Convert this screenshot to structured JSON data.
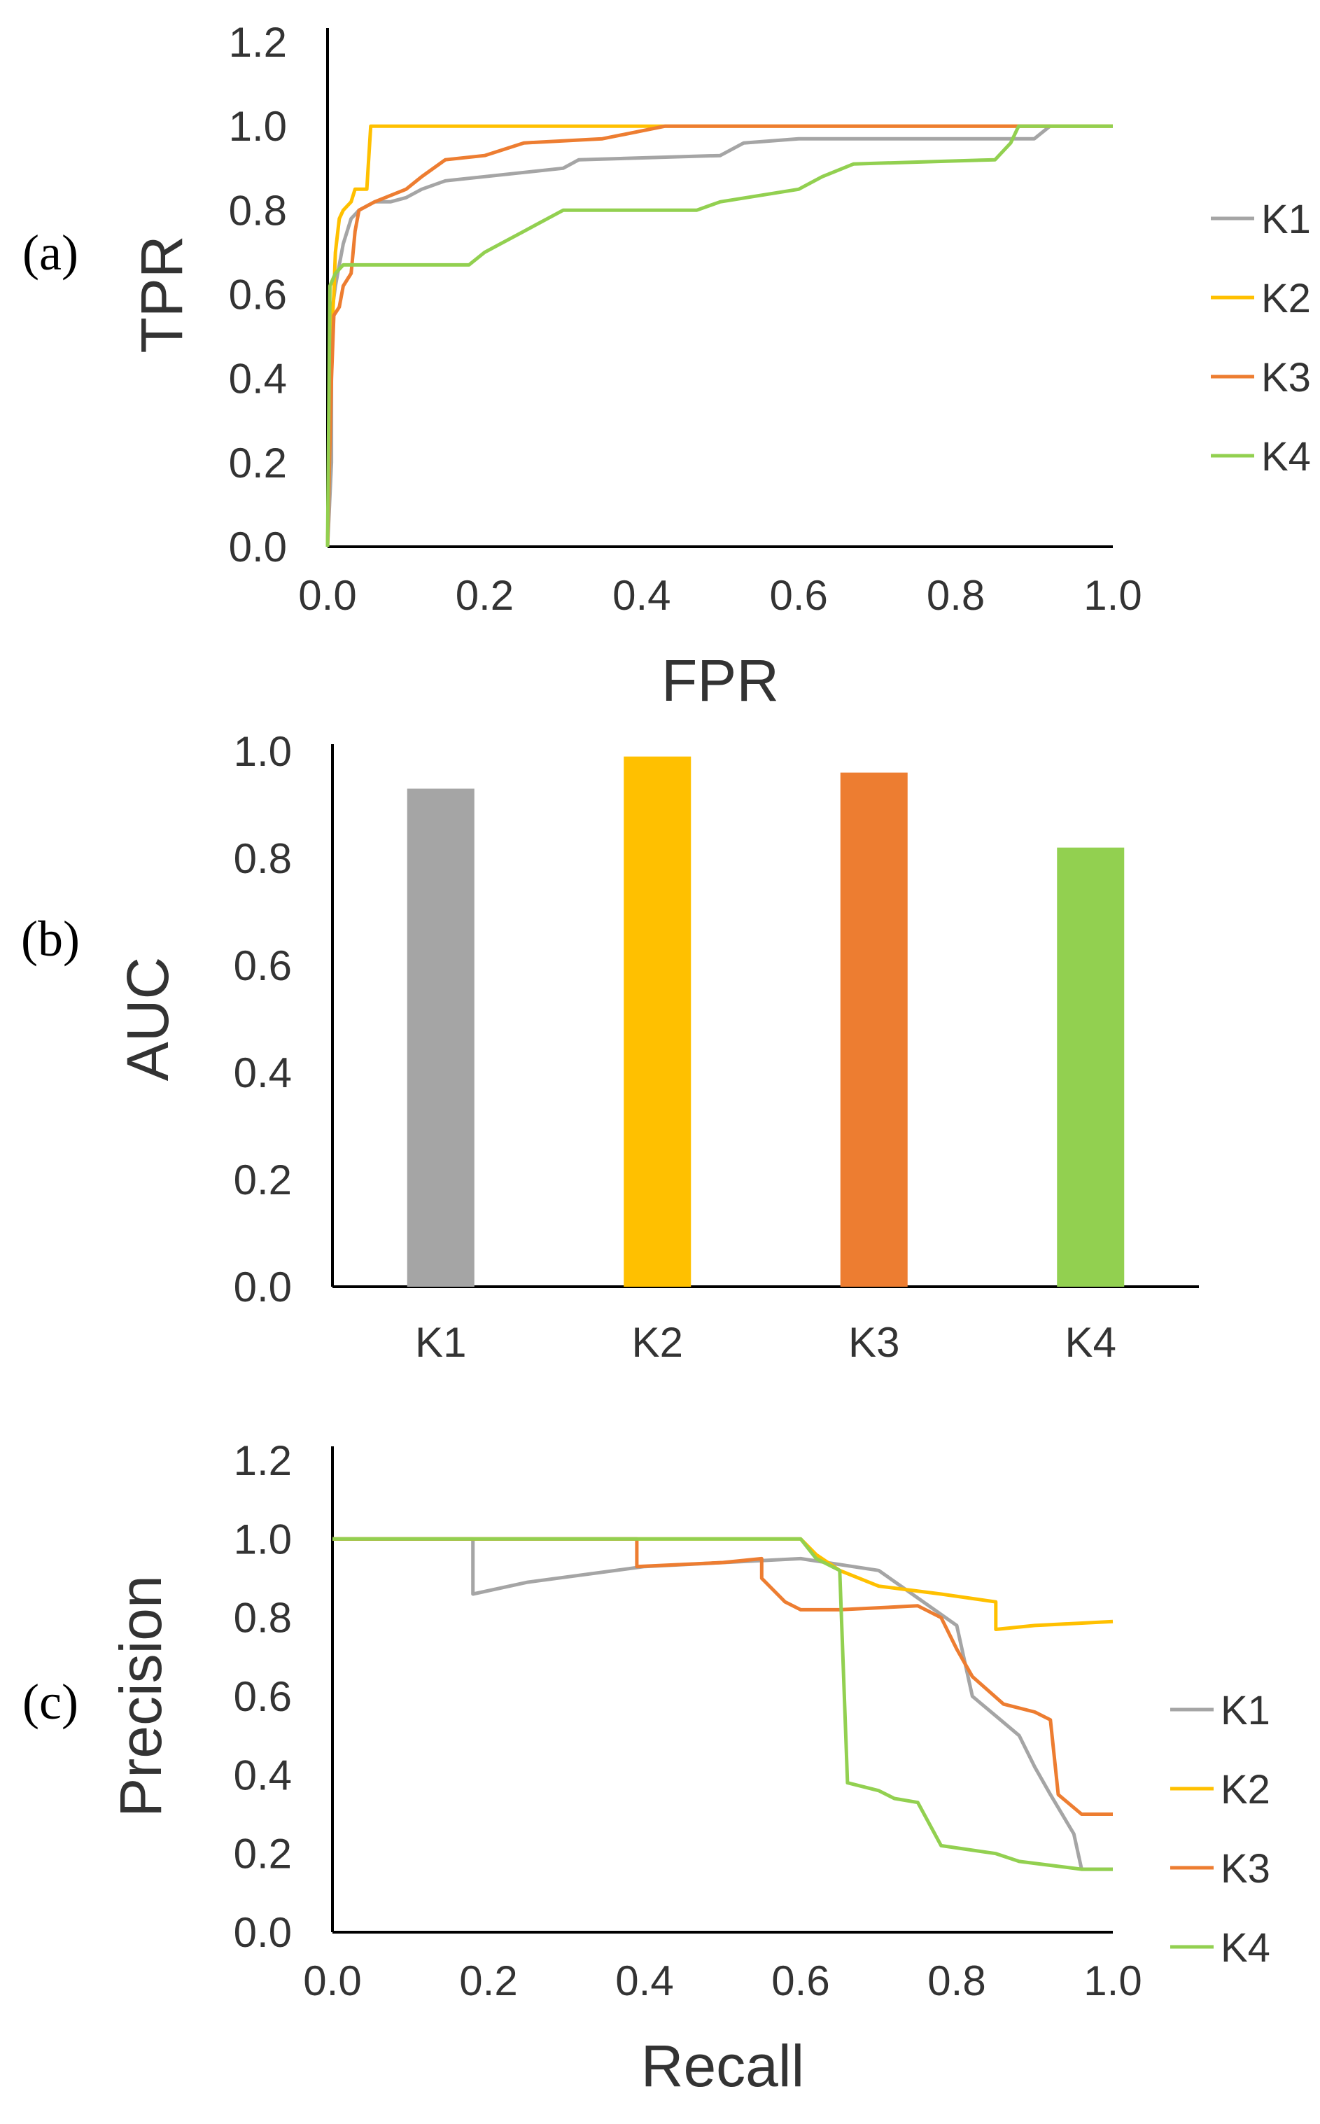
{
  "colors": {
    "K1": "#a5a5a5",
    "K2": "#ffc000",
    "K3": "#ed7d31",
    "K4": "#92d050",
    "axis": "#000000",
    "text": "#333333"
  },
  "chart_data": [
    {
      "id": "roc",
      "panel_label": "(a)",
      "type": "line",
      "xlabel": "FPR",
      "ylabel": "TPR",
      "xlim": [
        0,
        1.0
      ],
      "ylim": [
        0,
        1.2
      ],
      "xticks": [
        "0.0",
        "0.2",
        "0.4",
        "0.6",
        "0.8",
        "1.0"
      ],
      "yticks": [
        "0.0",
        "0.2",
        "0.4",
        "0.6",
        "0.8",
        "1.0",
        "1.2"
      ],
      "legend_position": "right",
      "series": [
        {
          "name": "K1",
          "points": [
            [
              0,
              0
            ],
            [
              0.005,
              0.2
            ],
            [
              0.005,
              0.55
            ],
            [
              0.01,
              0.62
            ],
            [
              0.02,
              0.72
            ],
            [
              0.03,
              0.78
            ],
            [
              0.04,
              0.8
            ],
            [
              0.06,
              0.82
            ],
            [
              0.08,
              0.82
            ],
            [
              0.1,
              0.83
            ],
            [
              0.12,
              0.85
            ],
            [
              0.15,
              0.87
            ],
            [
              0.2,
              0.88
            ],
            [
              0.25,
              0.89
            ],
            [
              0.3,
              0.9
            ],
            [
              0.32,
              0.92
            ],
            [
              0.5,
              0.93
            ],
            [
              0.53,
              0.96
            ],
            [
              0.6,
              0.97
            ],
            [
              0.9,
              0.97
            ],
            [
              0.92,
              1.0
            ],
            [
              1.0,
              1.0
            ]
          ]
        },
        {
          "name": "K2",
          "points": [
            [
              0,
              0
            ],
            [
              0.005,
              0.5
            ],
            [
              0.008,
              0.6
            ],
            [
              0.01,
              0.7
            ],
            [
              0.015,
              0.78
            ],
            [
              0.02,
              0.8
            ],
            [
              0.03,
              0.82
            ],
            [
              0.035,
              0.85
            ],
            [
              0.05,
              0.85
            ],
            [
              0.055,
              1.0
            ],
            [
              1.0,
              1.0
            ]
          ]
        },
        {
          "name": "K3",
          "points": [
            [
              0,
              0
            ],
            [
              0.005,
              0.4
            ],
            [
              0.008,
              0.55
            ],
            [
              0.015,
              0.57
            ],
            [
              0.02,
              0.62
            ],
            [
              0.03,
              0.65
            ],
            [
              0.035,
              0.75
            ],
            [
              0.04,
              0.8
            ],
            [
              0.06,
              0.82
            ],
            [
              0.1,
              0.85
            ],
            [
              0.12,
              0.88
            ],
            [
              0.15,
              0.92
            ],
            [
              0.2,
              0.93
            ],
            [
              0.25,
              0.96
            ],
            [
              0.35,
              0.97
            ],
            [
              0.43,
              1.0
            ],
            [
              0.92,
              1.0
            ]
          ]
        },
        {
          "name": "K4",
          "points": [
            [
              0,
              0
            ],
            [
              0.003,
              0.62
            ],
            [
              0.01,
              0.65
            ],
            [
              0.02,
              0.67
            ],
            [
              0.18,
              0.67
            ],
            [
              0.2,
              0.7
            ],
            [
              0.22,
              0.72
            ],
            [
              0.25,
              0.75
            ],
            [
              0.28,
              0.78
            ],
            [
              0.3,
              0.8
            ],
            [
              0.47,
              0.8
            ],
            [
              0.5,
              0.82
            ],
            [
              0.6,
              0.85
            ],
            [
              0.63,
              0.88
            ],
            [
              0.67,
              0.91
            ],
            [
              0.85,
              0.92
            ],
            [
              0.87,
              0.96
            ],
            [
              0.88,
              1.0
            ],
            [
              1.0,
              1.0
            ]
          ]
        }
      ]
    },
    {
      "id": "auc",
      "panel_label": "(b)",
      "type": "bar",
      "xlabel": "",
      "ylabel": "AUC",
      "categories": [
        "K1",
        "K2",
        "K3",
        "K4"
      ],
      "values": [
        0.93,
        0.99,
        0.96,
        0.82
      ],
      "ylim": [
        0,
        1.0
      ],
      "yticks": [
        "0.0",
        "0.2",
        "0.4",
        "0.6",
        "0.8",
        "1.0"
      ]
    },
    {
      "id": "pr",
      "panel_label": "(c)",
      "type": "line",
      "xlabel": "Recall",
      "ylabel": "Precision",
      "xlim": [
        0,
        1.0
      ],
      "ylim": [
        0,
        1.2
      ],
      "xticks": [
        "0.0",
        "0.2",
        "0.4",
        "0.6",
        "0.8",
        "1.0"
      ],
      "yticks": [
        "0.0",
        "0.2",
        "0.4",
        "0.6",
        "0.8",
        "1.0",
        "1.2"
      ],
      "legend_position": "right",
      "series": [
        {
          "name": "K1",
          "points": [
            [
              0,
              1.0
            ],
            [
              0.18,
              1.0
            ],
            [
              0.18,
              0.86
            ],
            [
              0.25,
              0.89
            ],
            [
              0.4,
              0.93
            ],
            [
              0.6,
              0.95
            ],
            [
              0.7,
              0.92
            ],
            [
              0.8,
              0.78
            ],
            [
              0.82,
              0.6
            ],
            [
              0.85,
              0.55
            ],
            [
              0.88,
              0.5
            ],
            [
              0.9,
              0.42
            ],
            [
              0.92,
              0.35
            ],
            [
              0.95,
              0.25
            ],
            [
              0.96,
              0.16
            ],
            [
              1.0,
              0.16
            ]
          ]
        },
        {
          "name": "K2",
          "points": [
            [
              0,
              1.0
            ],
            [
              0.6,
              1.0
            ],
            [
              0.62,
              0.96
            ],
            [
              0.65,
              0.92
            ],
            [
              0.7,
              0.88
            ],
            [
              0.78,
              0.86
            ],
            [
              0.85,
              0.84
            ],
            [
              0.85,
              0.77
            ],
            [
              0.9,
              0.78
            ],
            [
              1.0,
              0.79
            ]
          ]
        },
        {
          "name": "K3",
          "points": [
            [
              0,
              1.0
            ],
            [
              0.39,
              1.0
            ],
            [
              0.39,
              0.93
            ],
            [
              0.5,
              0.94
            ],
            [
              0.55,
              0.95
            ],
            [
              0.55,
              0.9
            ],
            [
              0.58,
              0.84
            ],
            [
              0.6,
              0.82
            ],
            [
              0.65,
              0.82
            ],
            [
              0.75,
              0.83
            ],
            [
              0.78,
              0.8
            ],
            [
              0.8,
              0.72
            ],
            [
              0.82,
              0.65
            ],
            [
              0.86,
              0.58
            ],
            [
              0.9,
              0.56
            ],
            [
              0.92,
              0.54
            ],
            [
              0.93,
              0.35
            ],
            [
              0.96,
              0.3
            ],
            [
              1.0,
              0.3
            ]
          ]
        },
        {
          "name": "K4",
          "points": [
            [
              0,
              1.0
            ],
            [
              0.6,
              1.0
            ],
            [
              0.62,
              0.95
            ],
            [
              0.65,
              0.92
            ],
            [
              0.66,
              0.38
            ],
            [
              0.7,
              0.36
            ],
            [
              0.72,
              0.34
            ],
            [
              0.75,
              0.33
            ],
            [
              0.78,
              0.22
            ],
            [
              0.85,
              0.2
            ],
            [
              0.88,
              0.18
            ],
            [
              0.92,
              0.17
            ],
            [
              0.96,
              0.16
            ],
            [
              1.0,
              0.16
            ]
          ]
        }
      ]
    }
  ]
}
